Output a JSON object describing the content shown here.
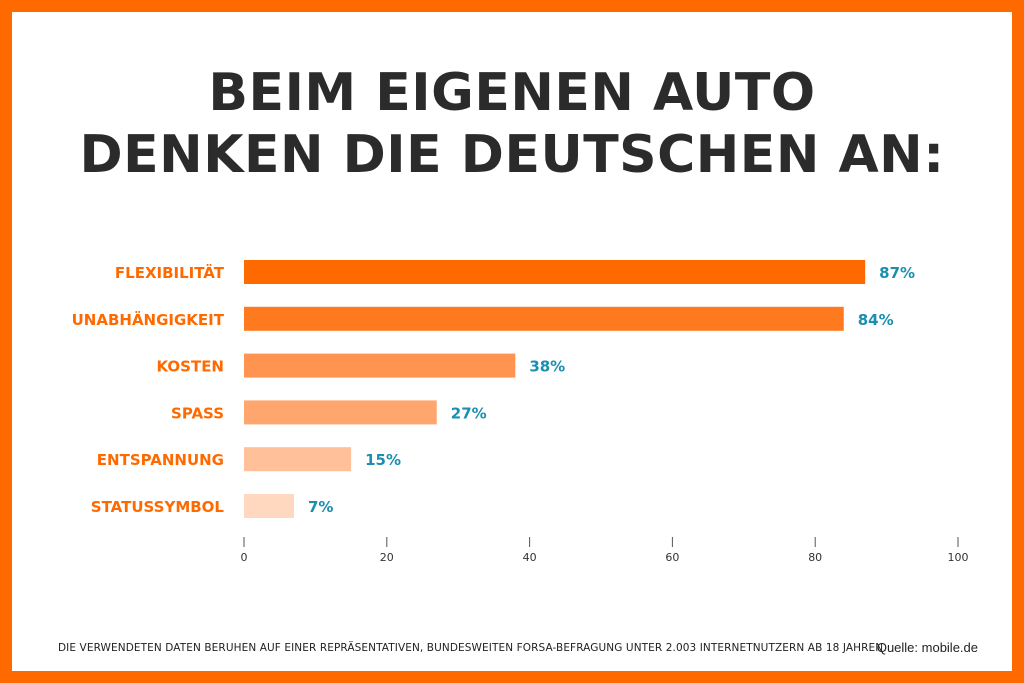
{
  "title_line1": "BEIM EIGENEN AUTO",
  "title_line2": "DENKEN DIE DEUTSCHEN AN:",
  "footnote": "DIE VERWENDETEN DATEN BERUHEN AUF EINER REPRÄSENTATIVEN, BUNDESWEITEN FORSA-BEFRAGUNG UNTER 2.003 INTERNETNUTZERN AB 18 JAHREN.",
  "source": "Quelle: mobile.de",
  "colors": {
    "frame": "#ff6a00",
    "label": "#ff6a00",
    "value_label": "#1a8fb0",
    "title": "#2b2b2b"
  },
  "chart_data": {
    "type": "bar",
    "orientation": "horizontal",
    "categories": [
      "FLEXIBILITÄT",
      "UNABHÄNGIGKEIT",
      "KOSTEN",
      "SPASS",
      "ENTSPANNUNG",
      "STATUSSYMBOL"
    ],
    "values": [
      87,
      84,
      38,
      27,
      15,
      7
    ],
    "value_labels": [
      "87%",
      "84%",
      "38%",
      "27%",
      "15%",
      "7%"
    ],
    "bar_colors": [
      "#ff6a00",
      "#ff7a1f",
      "#ff9450",
      "#ffa66e",
      "#ffc09a",
      "#ffd8bf"
    ],
    "xlim": [
      0,
      100
    ],
    "xticks": [
      0,
      20,
      40,
      60,
      80,
      100
    ],
    "xtick_labels": [
      "0",
      "20",
      "40",
      "60",
      "80",
      "100"
    ],
    "grid": false
  }
}
